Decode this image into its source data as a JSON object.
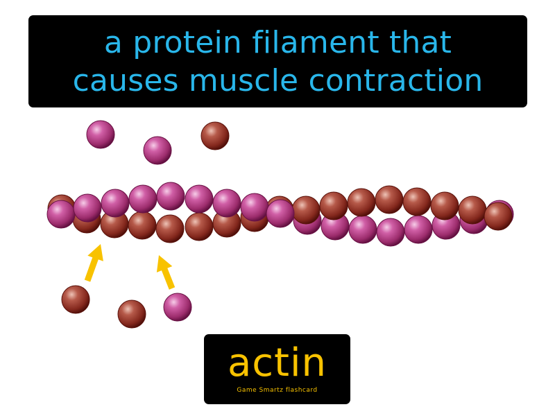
{
  "definition": {
    "line1": "a protein filament that",
    "line2": "causes muscle contraction"
  },
  "term": "actin",
  "brand": "Game Smartz flashcard",
  "colors": {
    "definition_text": "#29b6ea",
    "term_text": "#f8c200",
    "arrow": "#f8c200",
    "bead_purple": "#a0306e",
    "bead_brown": "#8b2a20",
    "box_background": "#000000"
  },
  "icons": [
    "purple-bead-icon",
    "brown-bead-icon",
    "arrow-up-icon"
  ]
}
